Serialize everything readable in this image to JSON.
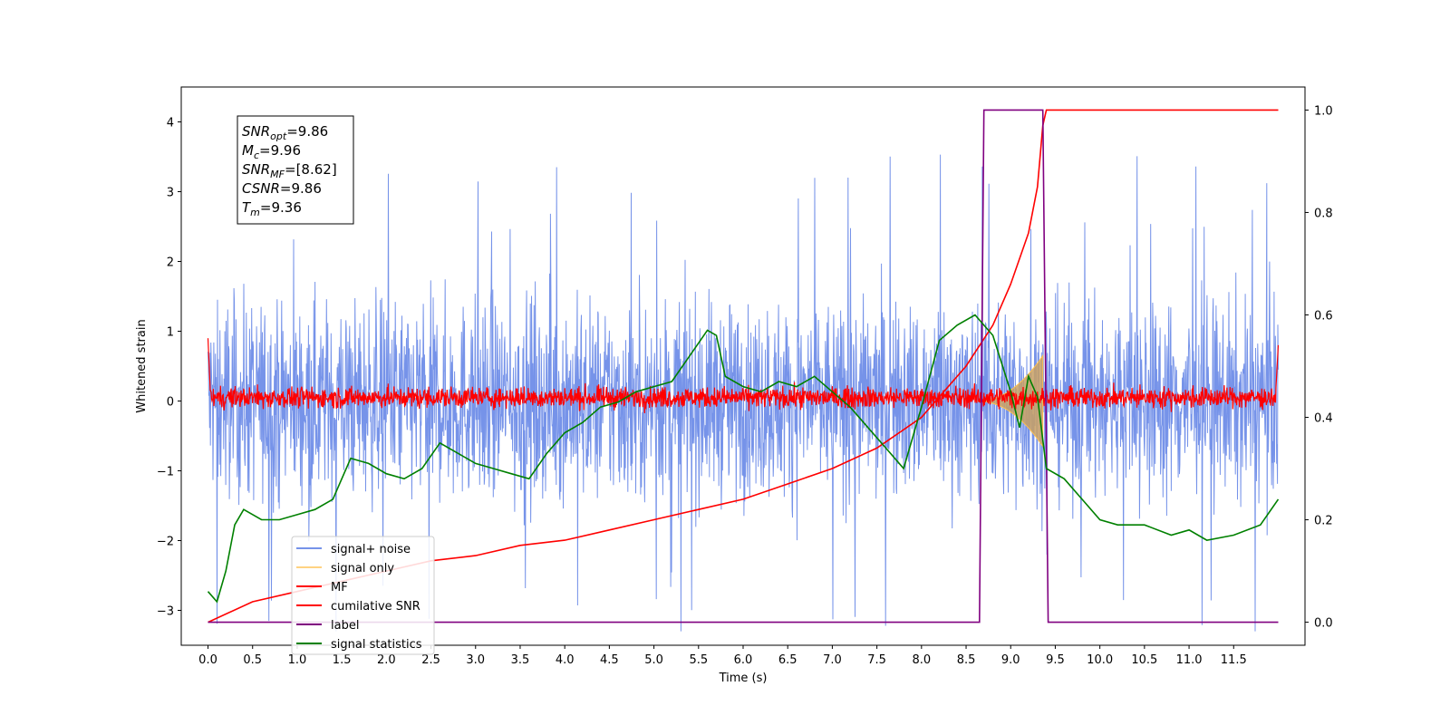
{
  "chart_data": {
    "type": "line",
    "xlabel": "Time (s)",
    "ylabel": "Whitened strain",
    "xlim": [
      -0.3,
      12.3
    ],
    "ylim": [
      -3.5,
      4.5
    ],
    "y2lim": [
      -0.045,
      1.045
    ],
    "x_ticks": [
      "0.0",
      "0.5",
      "1.0",
      "1.5",
      "2.0",
      "2.5",
      "3.0",
      "3.5",
      "4.0",
      "4.5",
      "5.0",
      "5.5",
      "6.0",
      "6.5",
      "7.0",
      "7.5",
      "8.0",
      "8.5",
      "9.0",
      "9.5",
      "10.0",
      "10.5",
      "11.0",
      "11.5"
    ],
    "y_ticks": [
      "−3",
      "−2",
      "−1",
      "0",
      "1",
      "2",
      "3",
      "4"
    ],
    "y2_ticks": [
      "0.0",
      "0.2",
      "0.4",
      "0.6",
      "0.8",
      "1.0"
    ],
    "grid": false,
    "legend_position": "lower-left",
    "info_box": [
      {
        "sym": "SNR",
        "sub": "opt",
        "val": "=9.86"
      },
      {
        "sym": "M",
        "sub": "c",
        "val": "=9.96"
      },
      {
        "sym": "SNR",
        "sub": "MF",
        "val": "=[8.62]"
      },
      {
        "sym": "CSNR",
        "sub": "",
        "val": "=9.86"
      },
      {
        "sym": "T",
        "sub": "m",
        "val": "=9.36"
      }
    ],
    "series": [
      {
        "name": "signal+ noise",
        "color": "#4169E1",
        "axis": "left",
        "style": "noise",
        "x_range": [
          0,
          12
        ],
        "baseline": 0,
        "envelope_min": [
          -3.3,
          2.0
        ],
        "envelope_max": [
          -2.3,
          4.2
        ]
      },
      {
        "name": "signal only",
        "color": "#FFC04D",
        "axis": "left",
        "style": "chirp",
        "x_start": 8.6,
        "x_peak": 9.36,
        "amp_peak": 0.65
      },
      {
        "name": "MF",
        "color": "#FF0000",
        "axis": "left",
        "style": "noise",
        "x_range": [
          0,
          12
        ],
        "baseline": 0,
        "typical_range": [
          -0.15,
          0.35
        ]
      },
      {
        "name": "cumilative SNR",
        "color": "#FF0000",
        "axis": "right",
        "x": [
          0.0,
          0.5,
          1.0,
          1.5,
          2.0,
          2.5,
          3.0,
          3.5,
          4.0,
          4.5,
          5.0,
          5.5,
          6.0,
          6.5,
          7.0,
          7.5,
          8.0,
          8.5,
          8.8,
          9.0,
          9.2,
          9.3,
          9.36,
          9.4,
          12.0
        ],
        "y": [
          0.0,
          0.04,
          0.06,
          0.08,
          0.1,
          0.12,
          0.13,
          0.15,
          0.16,
          0.18,
          0.2,
          0.22,
          0.24,
          0.27,
          0.3,
          0.34,
          0.4,
          0.5,
          0.58,
          0.66,
          0.76,
          0.85,
          0.97,
          1.0,
          1.0
        ]
      },
      {
        "name": "label",
        "color": "#800080",
        "axis": "right",
        "x": [
          0.0,
          8.65,
          8.7,
          9.36,
          9.42,
          12.0
        ],
        "y": [
          0,
          0,
          1,
          1,
          0,
          0
        ]
      },
      {
        "name": "signal statistics",
        "color": "#008000",
        "axis": "right",
        "x": [
          0.0,
          0.1,
          0.2,
          0.3,
          0.4,
          0.6,
          0.8,
          1.0,
          1.2,
          1.4,
          1.6,
          1.8,
          2.0,
          2.2,
          2.4,
          2.6,
          2.8,
          3.0,
          3.2,
          3.4,
          3.6,
          3.8,
          4.0,
          4.2,
          4.4,
          4.6,
          4.8,
          5.0,
          5.2,
          5.4,
          5.6,
          5.7,
          5.8,
          6.0,
          6.2,
          6.4,
          6.6,
          6.8,
          7.0,
          7.2,
          7.4,
          7.6,
          7.8,
          8.0,
          8.2,
          8.4,
          8.6,
          8.8,
          9.0,
          9.1,
          9.2,
          9.3,
          9.4,
          9.6,
          9.8,
          10.0,
          10.2,
          10.5,
          10.8,
          11.0,
          11.2,
          11.5,
          11.8,
          12.0
        ],
        "y": [
          0.06,
          0.04,
          0.1,
          0.19,
          0.22,
          0.2,
          0.2,
          0.21,
          0.22,
          0.24,
          0.32,
          0.31,
          0.29,
          0.28,
          0.3,
          0.35,
          0.33,
          0.31,
          0.3,
          0.29,
          0.28,
          0.33,
          0.37,
          0.39,
          0.42,
          0.43,
          0.45,
          0.46,
          0.47,
          0.52,
          0.57,
          0.56,
          0.48,
          0.46,
          0.45,
          0.47,
          0.46,
          0.48,
          0.45,
          0.42,
          0.38,
          0.34,
          0.3,
          0.42,
          0.55,
          0.58,
          0.6,
          0.56,
          0.45,
          0.38,
          0.48,
          0.44,
          0.3,
          0.28,
          0.24,
          0.2,
          0.19,
          0.19,
          0.17,
          0.18,
          0.16,
          0.17,
          0.19,
          0.24
        ]
      }
    ]
  }
}
